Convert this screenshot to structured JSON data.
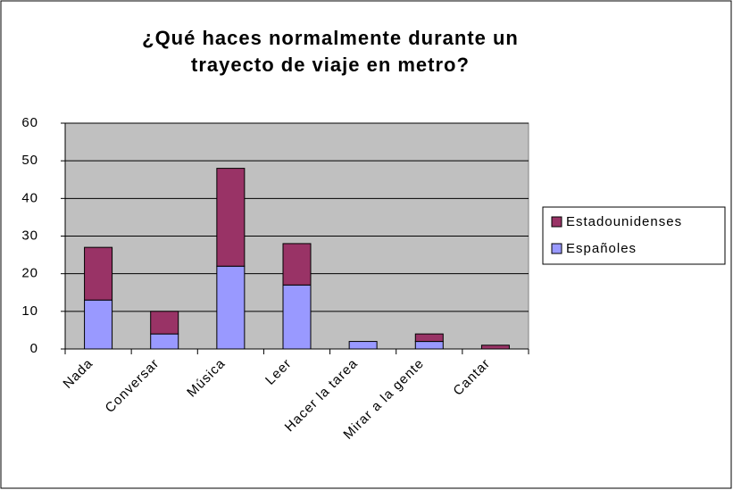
{
  "chart_data": {
    "type": "stacked_bar",
    "title": "¿Qué haces normalmente durante un trayecto de viaje en metro?",
    "categories": [
      "Nada",
      "Conversar",
      "Música",
      "Leer",
      "Hacer la tarea",
      "Mirar a la gente",
      "Cantar"
    ],
    "series": [
      {
        "name": "Españoles",
        "color": "#9999ff",
        "values": [
          13,
          4,
          22,
          17,
          2,
          2,
          0
        ]
      },
      {
        "name": "Estadounidenses",
        "color": "#993366",
        "values": [
          14,
          6,
          26,
          11,
          0,
          2,
          1
        ]
      }
    ],
    "ylim": [
      0,
      60
    ],
    "yticks": [
      0,
      10,
      20,
      30,
      40,
      50,
      60
    ],
    "grid": true,
    "legend": "right"
  }
}
